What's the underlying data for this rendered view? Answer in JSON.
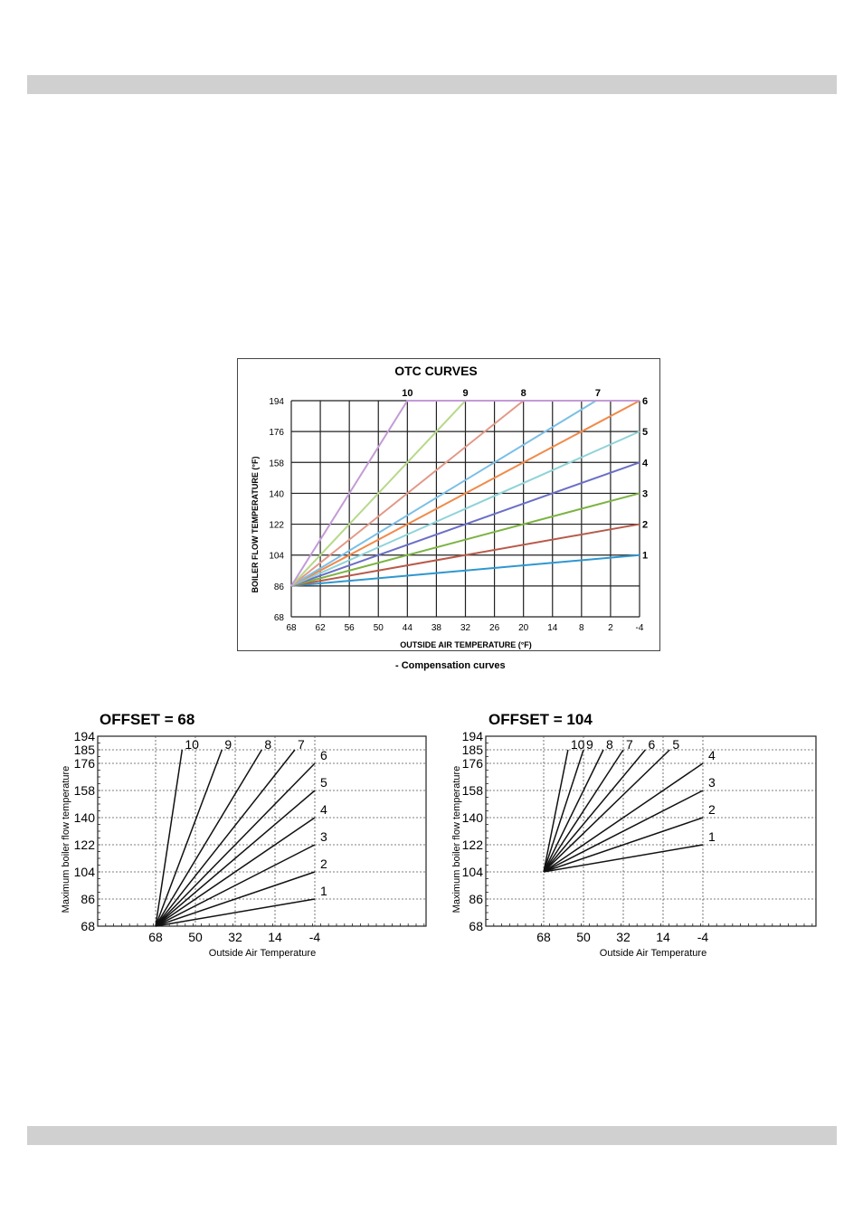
{
  "otc": {
    "title": "OTC CURVES",
    "caption": "- Compensation curves",
    "chart_data": {
      "type": "line",
      "title": "OTC CURVES",
      "xlabel": "OUTSIDE AIR TEMPERATURE (°F)",
      "ylabel": "BOILER FLOW TEMPERATURE (°F)",
      "x_ticks": [
        "68",
        "62",
        "56",
        "50",
        "44",
        "38",
        "32",
        "26",
        "20",
        "14",
        "8",
        "2",
        "-4"
      ],
      "y_ticks": [
        "68",
        "86",
        "104",
        "122",
        "140",
        "158",
        "176",
        "194"
      ],
      "xlim": [
        68,
        -4
      ],
      "ylim": [
        68,
        194
      ],
      "grid": true,
      "series": [
        {
          "name": "1",
          "color": "#2f97cf",
          "points": [
            [
              68,
              86
            ],
            [
              -4,
              104
            ]
          ]
        },
        {
          "name": "2",
          "color": "#b85a4a",
          "points": [
            [
              68,
              86
            ],
            [
              -4,
              122
            ]
          ]
        },
        {
          "name": "3",
          "color": "#7cb342",
          "points": [
            [
              68,
              86
            ],
            [
              -4,
              140
            ]
          ]
        },
        {
          "name": "4",
          "color": "#6a6fc7",
          "points": [
            [
              68,
              86
            ],
            [
              -4,
              158
            ]
          ]
        },
        {
          "name": "5",
          "color": "#8fd3d8",
          "points": [
            [
              68,
              86
            ],
            [
              -4,
              176
            ]
          ]
        },
        {
          "name": "6",
          "color": "#f08a4b",
          "points": [
            [
              68,
              86
            ],
            [
              -4,
              194
            ]
          ]
        },
        {
          "name": "7",
          "color": "#7bbfe6",
          "points": [
            [
              68,
              86
            ],
            [
              5,
              194
            ],
            [
              -4,
              194
            ]
          ]
        },
        {
          "name": "8",
          "color": "#e29a88",
          "points": [
            [
              68,
              86
            ],
            [
              20,
              194
            ],
            [
              -4,
              194
            ]
          ]
        },
        {
          "name": "9",
          "color": "#b7d98a",
          "points": [
            [
              68,
              86
            ],
            [
              32,
              194
            ],
            [
              -4,
              194
            ]
          ]
        },
        {
          "name": "10",
          "color": "#c39bd6",
          "points": [
            [
              68,
              86
            ],
            [
              44,
              194
            ],
            [
              -4,
              194
            ]
          ]
        }
      ]
    }
  },
  "offset68": {
    "title": "OFFSET = 68",
    "chart_data": {
      "type": "line",
      "title": "OFFSET = 68",
      "xlabel": "Outside Air Temperature",
      "ylabel": "Maximum boiler flow temperature",
      "x_ticks": [
        "68",
        "50",
        "32",
        "14",
        "-4"
      ],
      "y_ticks": [
        "68",
        "86",
        "104",
        "122",
        "140",
        "158",
        "176",
        "185",
        "194"
      ],
      "xlim": [
        68,
        -4
      ],
      "ylim": [
        68,
        194
      ],
      "grid": true,
      "series": [
        {
          "name": "1",
          "points": [
            [
              68,
              68
            ],
            [
              -4,
              86
            ]
          ]
        },
        {
          "name": "2",
          "points": [
            [
              68,
              68
            ],
            [
              -4,
              104
            ]
          ]
        },
        {
          "name": "3",
          "points": [
            [
              68,
              68
            ],
            [
              -4,
              122
            ]
          ]
        },
        {
          "name": "4",
          "points": [
            [
              68,
              68
            ],
            [
              -4,
              140
            ]
          ]
        },
        {
          "name": "5",
          "points": [
            [
              68,
              68
            ],
            [
              -4,
              158
            ]
          ]
        },
        {
          "name": "6",
          "points": [
            [
              68,
              68
            ],
            [
              -4,
              176
            ]
          ]
        },
        {
          "name": "7",
          "points": [
            [
              68,
              68
            ],
            [
              5,
              185
            ]
          ]
        },
        {
          "name": "8",
          "points": [
            [
              68,
              68
            ],
            [
              20,
              185
            ]
          ]
        },
        {
          "name": "9",
          "points": [
            [
              68,
              68
            ],
            [
              38,
              185
            ]
          ]
        },
        {
          "name": "10",
          "points": [
            [
              68,
              68
            ],
            [
              56,
              185
            ]
          ]
        }
      ]
    }
  },
  "offset104": {
    "title": "OFFSET = 104",
    "chart_data": {
      "type": "line",
      "title": "OFFSET = 104",
      "xlabel": "Outside Air Temperature",
      "ylabel": "Maximum boiler flow temperature",
      "x_ticks": [
        "68",
        "50",
        "32",
        "14",
        "-4"
      ],
      "y_ticks": [
        "68",
        "86",
        "104",
        "122",
        "140",
        "158",
        "176",
        "185",
        "194"
      ],
      "xlim": [
        68,
        -4
      ],
      "ylim": [
        68,
        194
      ],
      "grid": true,
      "series": [
        {
          "name": "1",
          "points": [
            [
              68,
              104
            ],
            [
              -4,
              122
            ]
          ]
        },
        {
          "name": "2",
          "points": [
            [
              68,
              104
            ],
            [
              -4,
              140
            ]
          ]
        },
        {
          "name": "3",
          "points": [
            [
              68,
              104
            ],
            [
              -4,
              158
            ]
          ]
        },
        {
          "name": "4",
          "points": [
            [
              68,
              104
            ],
            [
              -4,
              176
            ]
          ]
        },
        {
          "name": "5",
          "points": [
            [
              68,
              104
            ],
            [
              11,
              185
            ]
          ]
        },
        {
          "name": "6",
          "points": [
            [
              68,
              104
            ],
            [
              22,
              185
            ]
          ]
        },
        {
          "name": "7",
          "points": [
            [
              68,
              104
            ],
            [
              32,
              185
            ]
          ]
        },
        {
          "name": "8",
          "points": [
            [
              68,
              104
            ],
            [
              41,
              185
            ]
          ]
        },
        {
          "name": "9",
          "points": [
            [
              68,
              104
            ],
            [
              50,
              185
            ]
          ]
        },
        {
          "name": "10",
          "points": [
            [
              68,
              104
            ],
            [
              57,
              185
            ]
          ]
        }
      ]
    }
  }
}
